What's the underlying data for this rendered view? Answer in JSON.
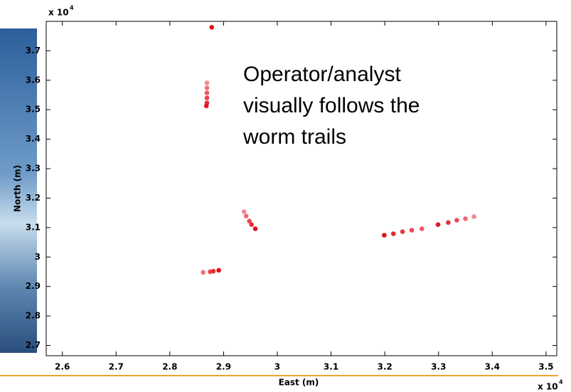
{
  "chart_data": {
    "type": "scatter",
    "annotation": [
      "Operator/analyst",
      "visually follows the",
      "worm trails"
    ],
    "xlabel": "East (m)",
    "ylabel": "North (m)",
    "x_multiplier": "x 10",
    "x_exponent": "4",
    "y_multiplier": "x 10",
    "y_exponent": "4",
    "xlim": [
      2.57,
      3.52
    ],
    "ylim": [
      2.665,
      3.8
    ],
    "xticks": [
      2.6,
      2.7,
      2.8,
      2.9,
      3,
      3.1,
      3.2,
      3.3,
      3.4,
      3.5
    ],
    "yticks": [
      2.7,
      2.8,
      2.9,
      3,
      3.1,
      3.2,
      3.3,
      3.4,
      3.5,
      3.6,
      3.7
    ],
    "grid": false,
    "series": [
      {
        "x": [
          2.878
        ],
        "values": [
          3.78
        ],
        "colors": [
          "#e0101a"
        ]
      },
      {
        "x": [
          2.869,
          2.869,
          2.869,
          2.869,
          2.869,
          2.868
        ],
        "values": [
          3.591,
          3.574,
          3.557,
          3.54,
          3.523,
          3.513
        ],
        "colors": [
          "#f08a90",
          "#f07078",
          "#ee5a62",
          "#ea444c",
          "#e63038",
          "#e01820"
        ]
      },
      {
        "x": [
          2.938,
          2.942,
          2.948,
          2.952,
          2.959
        ],
        "values": [
          3.154,
          3.139,
          3.122,
          3.11,
          3.096
        ],
        "colors": [
          "#f08a90",
          "#ee6a72",
          "#ea4a52",
          "#e63038",
          "#e01018"
        ]
      },
      {
        "x": [
          2.862,
          2.875,
          2.881,
          2.891
        ],
        "values": [
          2.948,
          2.95,
          2.952,
          2.955
        ],
        "colors": [
          "#f07078",
          "#ea444c",
          "#e63038",
          "#e01018"
        ]
      },
      {
        "x": [
          3.199,
          3.216,
          3.233,
          3.25,
          3.269,
          3.299,
          3.318,
          3.334,
          3.35,
          3.366
        ],
        "values": [
          3.074,
          3.079,
          3.086,
          3.091,
          3.096,
          3.11,
          3.117,
          3.125,
          3.13,
          3.137
        ],
        "colors": [
          "#e01018",
          "#e42630",
          "#e63840",
          "#ea4a52",
          "#ec5a62",
          "#e01822",
          "#e63038",
          "#ea4a52",
          "#ee6a72",
          "#f08a90"
        ]
      }
    ]
  }
}
